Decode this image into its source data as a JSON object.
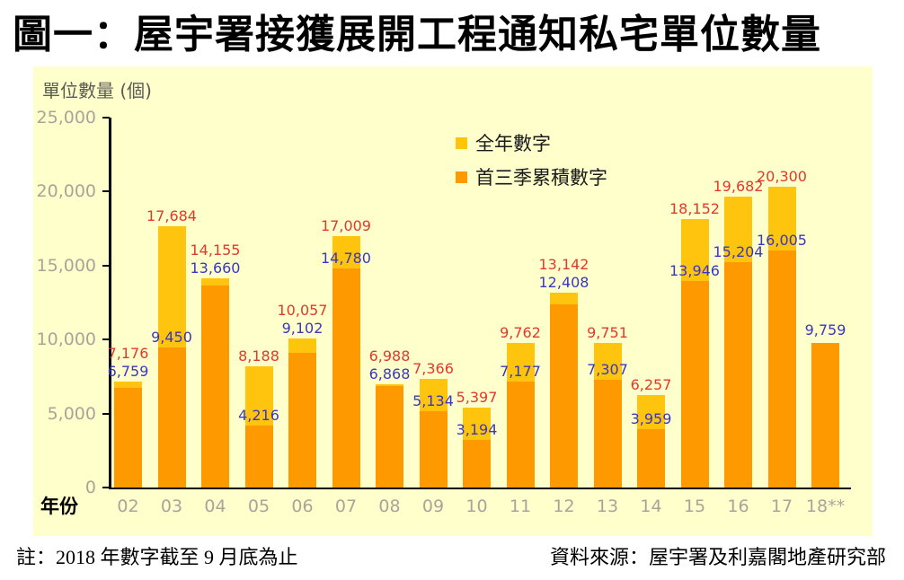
{
  "title": "圖一：屋宇署接獲展開工程通知私宅單位數量",
  "chart": {
    "y_axis_title": "單位數量 (個)",
    "x_axis_title": "年份",
    "legend": [
      {
        "label": "全年數字",
        "color": "#FFC40E"
      },
      {
        "label": "首三季累積數字",
        "color": "#FF9900"
      }
    ]
  },
  "chart_data": {
    "type": "bar",
    "title": "圖一：屋宇署接獲展開工程通知私宅單位數量",
    "xlabel": "年份",
    "ylabel": "單位數量 (個)",
    "categories": [
      "02",
      "03",
      "04",
      "05",
      "06",
      "07",
      "08",
      "09",
      "10",
      "11",
      "12",
      "13",
      "14",
      "15",
      "16",
      "17",
      "18**"
    ],
    "series": [
      {
        "name": "全年數字",
        "color": "#FFC40E",
        "label_color": "#E0392E",
        "values": [
          7176,
          17684,
          14155,
          8188,
          10057,
          17009,
          6988,
          7366,
          5397,
          9762,
          13142,
          9751,
          6257,
          18152,
          19682,
          20300,
          null
        ]
      },
      {
        "name": "首三季累積數字",
        "color": "#FF9900",
        "label_color": "#3838C0",
        "values": [
          6759,
          9450,
          13660,
          4216,
          9102,
          14780,
          6868,
          5134,
          3194,
          7177,
          12408,
          7307,
          3959,
          13946,
          15204,
          16005,
          9759
        ]
      }
    ],
    "ylim": [
      0,
      25000
    ],
    "ytick_step": 5000,
    "grid": false,
    "legend_position": "top-center",
    "bar_style": "overlapped"
  },
  "notes": {
    "footnote": "註：2018 年數字截至 9 月底為止",
    "source": "資料來源：屋宇署及利嘉閣地產研究部"
  },
  "colors": {
    "page_bg": "#FFFFFF",
    "plot_bg": "#FFFFCC",
    "axis": "#000000",
    "tick_label": "#A8A49A",
    "axis_title": "#5B5B55"
  }
}
